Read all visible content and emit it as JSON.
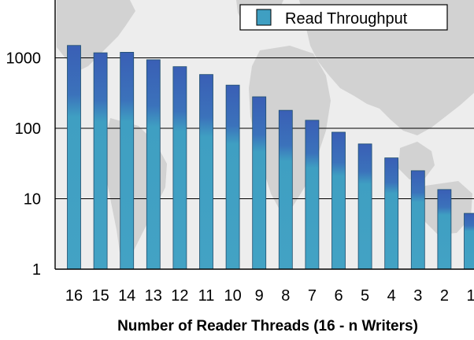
{
  "chart_data": {
    "type": "bar",
    "title": "",
    "xlabel": "Number of Reader Threads (16 - n Writers)",
    "ylabel": "",
    "yscale": "log",
    "ylim": [
      1,
      5000
    ],
    "yticks": [
      1,
      10,
      100,
      1000
    ],
    "ytick_labels": [
      "1",
      "10",
      "100",
      "1000"
    ],
    "categories": [
      "16",
      "15",
      "14",
      "13",
      "12",
      "11",
      "10",
      "9",
      "8",
      "7",
      "6",
      "5",
      "4",
      "3",
      "2",
      "1"
    ],
    "series": [
      {
        "name": "Read Throughput",
        "values": [
          1500,
          1180,
          1200,
          940,
          750,
          580,
          410,
          280,
          180,
          130,
          88,
          60,
          38,
          25,
          13.5,
          6.2
        ]
      }
    ],
    "legend_position": "top-right",
    "grid": "horizontal major lines",
    "colors": {
      "bar_fill": "#3f9fc2",
      "bar_top": "#3b63b7",
      "bar_edge": "#1f4f6e",
      "legend_swatch": "#3f9fc2",
      "background_map": "#d6d6d6",
      "plot_background": "#eeeeee"
    }
  }
}
